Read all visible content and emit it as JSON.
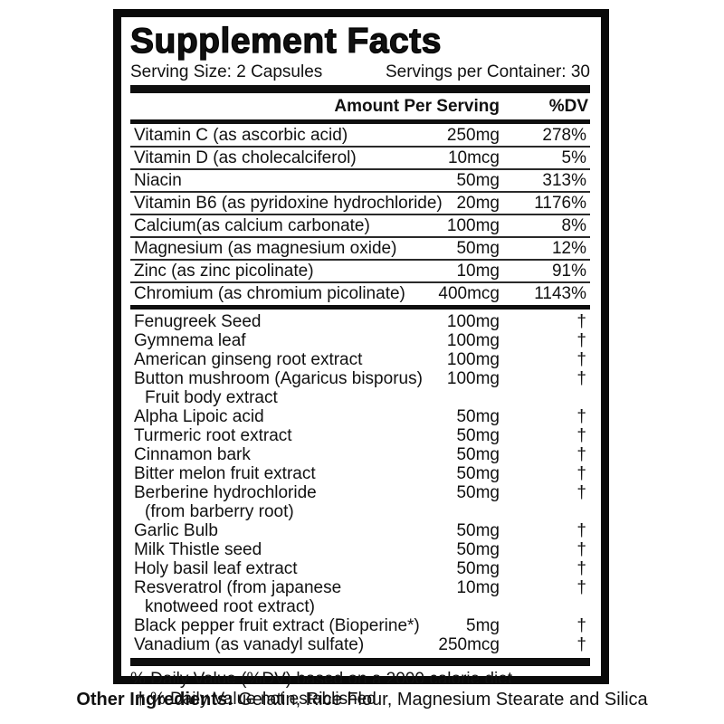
{
  "label": {
    "title": "Supplement Facts",
    "serving_size": "Serving Size: 2 Capsules",
    "servings_per_container": "Servings per Container: 30",
    "columns": {
      "amount": "Amount Per Serving",
      "dv": "%DV"
    },
    "vitamins": [
      {
        "name": "Vitamin C (as ascorbic acid)",
        "amount": "250mg",
        "dv": "278%"
      },
      {
        "name": "Vitamin D (as cholecalciferol)",
        "amount": "10mcg",
        "dv": "5%"
      },
      {
        "name": "Niacin",
        "amount": "50mg",
        "dv": "313%"
      },
      {
        "name": "Vitamin B6 (as pyridoxine hydrochloride)",
        "amount": "20mg",
        "dv": "1176%"
      },
      {
        "name": "Calcium(as calcium carbonate)",
        "amount": "100mg",
        "dv": "8%"
      },
      {
        "name": "Magnesium (as magnesium oxide)",
        "amount": "50mg",
        "dv": "12%"
      },
      {
        "name": "Zinc (as zinc picolinate)",
        "amount": "10mg",
        "dv": "91%"
      },
      {
        "name": "Chromium (as chromium picolinate)",
        "amount": "400mcg",
        "dv": "1143%"
      }
    ],
    "botanicals": [
      {
        "name": "Fenugreek Seed",
        "name2": "",
        "amount": "100mg",
        "dv": "†"
      },
      {
        "name": "Gymnema leaf",
        "name2": "",
        "amount": "100mg",
        "dv": "†"
      },
      {
        "name": "American ginseng root extract",
        "name2": "",
        "amount": "100mg",
        "dv": "†"
      },
      {
        "name": "Button mushroom (Agaricus bisporus)",
        "name2": "Fruit body extract",
        "amount": "100mg",
        "dv": "†"
      },
      {
        "name": "Alpha Lipoic acid",
        "name2": "",
        "amount": "50mg",
        "dv": "†"
      },
      {
        "name": "Turmeric root extract",
        "name2": "",
        "amount": "50mg",
        "dv": "†"
      },
      {
        "name": "Cinnamon bark",
        "name2": "",
        "amount": "50mg",
        "dv": "†"
      },
      {
        "name": "Bitter melon fruit extract",
        "name2": "",
        "amount": "50mg",
        "dv": "†"
      },
      {
        "name": "Berberine hydrochloride",
        "name2": "(from barberry root)",
        "amount": "50mg",
        "dv": "†"
      },
      {
        "name": "Garlic Bulb",
        "name2": "",
        "amount": "50mg",
        "dv": "†"
      },
      {
        "name": "Milk Thistle seed",
        "name2": "",
        "amount": "50mg",
        "dv": "†"
      },
      {
        "name": "Holy basil leaf extract",
        "name2": "",
        "amount": "50mg",
        "dv": "†"
      },
      {
        "name": "Resveratrol (from japanese",
        "name2": "knotweed root extract)",
        "amount": "10mg",
        "dv": "†"
      },
      {
        "name": "Black pepper fruit extract (Bioperine*)",
        "name2": "",
        "amount": "5mg",
        "dv": "†"
      },
      {
        "name": "Vanadium (as vanadyl sulfate)",
        "name2": "",
        "amount": "250mcg",
        "dv": "†"
      }
    ],
    "footnotes": [
      "% Daily Value (%DV) based on a 2000 calorie diet",
      "† % Daily Value not established"
    ],
    "other_ingredients_label": "Other Ingredients:",
    "other_ingredients_text": " Gelatin, Rice Flour, Magnesium Stearate and Silica"
  }
}
